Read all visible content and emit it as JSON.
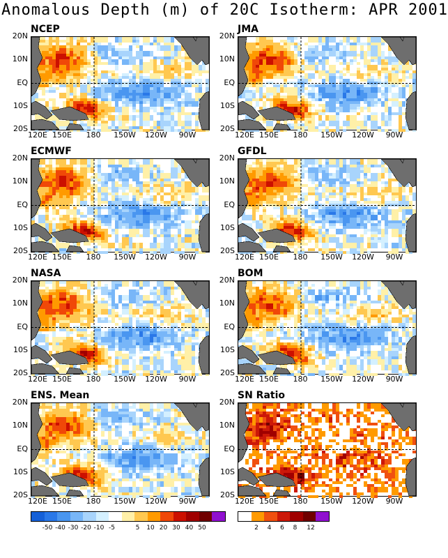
{
  "figure": {
    "title": "Anomalous Depth (m) of 20C Isotherm: APR 2001"
  },
  "chart_data": [
    {
      "type": "heatmap",
      "title": "NCEP",
      "region": "tropical Pacific",
      "x_ticks": [
        "120E",
        "150E",
        "180",
        "150W",
        "120W",
        "90W"
      ],
      "y_ticks": [
        "20N",
        "10N",
        "EQ",
        "10S",
        "20S"
      ],
      "xlim": [
        120,
        290
      ],
      "ylim": [
        -20,
        20
      ],
      "variable": "20C isotherm depth anomaly (m)",
      "features": {
        "west_positive_max": 40,
        "east_negative_min": -30
      }
    },
    {
      "type": "heatmap",
      "title": "JMA",
      "region": "tropical Pacific",
      "x_ticks": [
        "120E",
        "150E",
        "180",
        "150W",
        "120W",
        "90W"
      ],
      "y_ticks": [
        "20N",
        "10N",
        "EQ",
        "10S",
        "20S"
      ],
      "xlim": [
        120,
        290
      ],
      "ylim": [
        -20,
        20
      ],
      "variable": "20C isotherm depth anomaly (m)",
      "features": {
        "west_positive_max": 40,
        "east_negative_min": -30
      }
    },
    {
      "type": "heatmap",
      "title": "ECMWF",
      "region": "tropical Pacific",
      "x_ticks": [
        "120E",
        "150E",
        "180",
        "150W",
        "120W",
        "90W"
      ],
      "y_ticks": [
        "20N",
        "10N",
        "EQ",
        "10S",
        "20S"
      ],
      "xlim": [
        120,
        290
      ],
      "ylim": [
        -20,
        20
      ],
      "variable": "20C isotherm depth anomaly (m)",
      "features": {
        "west_positive_max": 50,
        "east_negative_min": -30
      }
    },
    {
      "type": "heatmap",
      "title": "GFDL",
      "region": "tropical Pacific",
      "x_ticks": [
        "120E",
        "150E",
        "180",
        "150W",
        "120W",
        "90W"
      ],
      "y_ticks": [
        "20N",
        "10N",
        "EQ",
        "10S",
        "20S"
      ],
      "xlim": [
        120,
        290
      ],
      "ylim": [
        -20,
        20
      ],
      "variable": "20C isotherm depth anomaly (m)",
      "features": {
        "west_positive_max": 30,
        "east_negative_min": -30
      }
    },
    {
      "type": "heatmap",
      "title": "NASA",
      "region": "tropical Pacific",
      "x_ticks": [
        "120E",
        "150E",
        "180",
        "150W",
        "120W",
        "90W"
      ],
      "y_ticks": [
        "20N",
        "10N",
        "EQ",
        "10S",
        "20S"
      ],
      "xlim": [
        120,
        290
      ],
      "ylim": [
        -20,
        20
      ],
      "variable": "20C isotherm depth anomaly (m)",
      "features": {
        "west_positive_max": 30,
        "east_negative_min": -20
      }
    },
    {
      "type": "heatmap",
      "title": "BOM",
      "region": "tropical Pacific",
      "x_ticks": [
        "120E",
        "150E",
        "180",
        "150W",
        "120W",
        "90W"
      ],
      "y_ticks": [
        "20N",
        "10N",
        "EQ",
        "10S",
        "20S"
      ],
      "xlim": [
        120,
        290
      ],
      "ylim": [
        -20,
        20
      ],
      "variable": "20C isotherm depth anomaly (m)",
      "features": {
        "west_positive_max": 40,
        "east_negative_min": -20
      }
    },
    {
      "type": "heatmap",
      "title": "ENS. Mean",
      "region": "tropical Pacific",
      "x_ticks": [
        "120E",
        "150E",
        "180",
        "150W",
        "120W",
        "90W"
      ],
      "y_ticks": [
        "20N",
        "10N",
        "EQ",
        "10S",
        "20S"
      ],
      "xlim": [
        120,
        290
      ],
      "ylim": [
        -20,
        20
      ],
      "variable": "20C isotherm depth anomaly (m)",
      "features": {
        "west_positive_max": 40,
        "east_negative_min": -20
      }
    },
    {
      "type": "heatmap",
      "title": "SN Ratio",
      "region": "tropical Pacific",
      "x_ticks": [
        "120E",
        "150E",
        "180",
        "150W",
        "120W",
        "90W"
      ],
      "y_ticks": [
        "20N",
        "10N",
        "EQ",
        "10S",
        "20S"
      ],
      "xlim": [
        120,
        290
      ],
      "ylim": [
        -20,
        20
      ],
      "variable": "signal-to-noise ratio",
      "features": {
        "max": 12
      }
    }
  ],
  "colorbars": {
    "anomaly": {
      "colors": [
        "#1560d8",
        "#2a78e8",
        "#4a96f0",
        "#78b6f8",
        "#a8d4fc",
        "#d4f0ff",
        "#ffffff",
        "#fff0a8",
        "#ffc850",
        "#ff9a00",
        "#f04808",
        "#cc1000",
        "#a00000",
        "#700000",
        "#9010d0"
      ],
      "labels": [
        "-50",
        "-40",
        "-30",
        "-20",
        "-10",
        "-5",
        "5",
        "10",
        "20",
        "30",
        "40",
        "50"
      ]
    },
    "sn_ratio": {
      "colors": [
        "#ffffff",
        "#ff9a00",
        "#f05010",
        "#cc1808",
        "#a00000",
        "#700000",
        "#9010d0"
      ],
      "labels": [
        "2",
        "4",
        "6",
        "8",
        "12"
      ]
    }
  }
}
